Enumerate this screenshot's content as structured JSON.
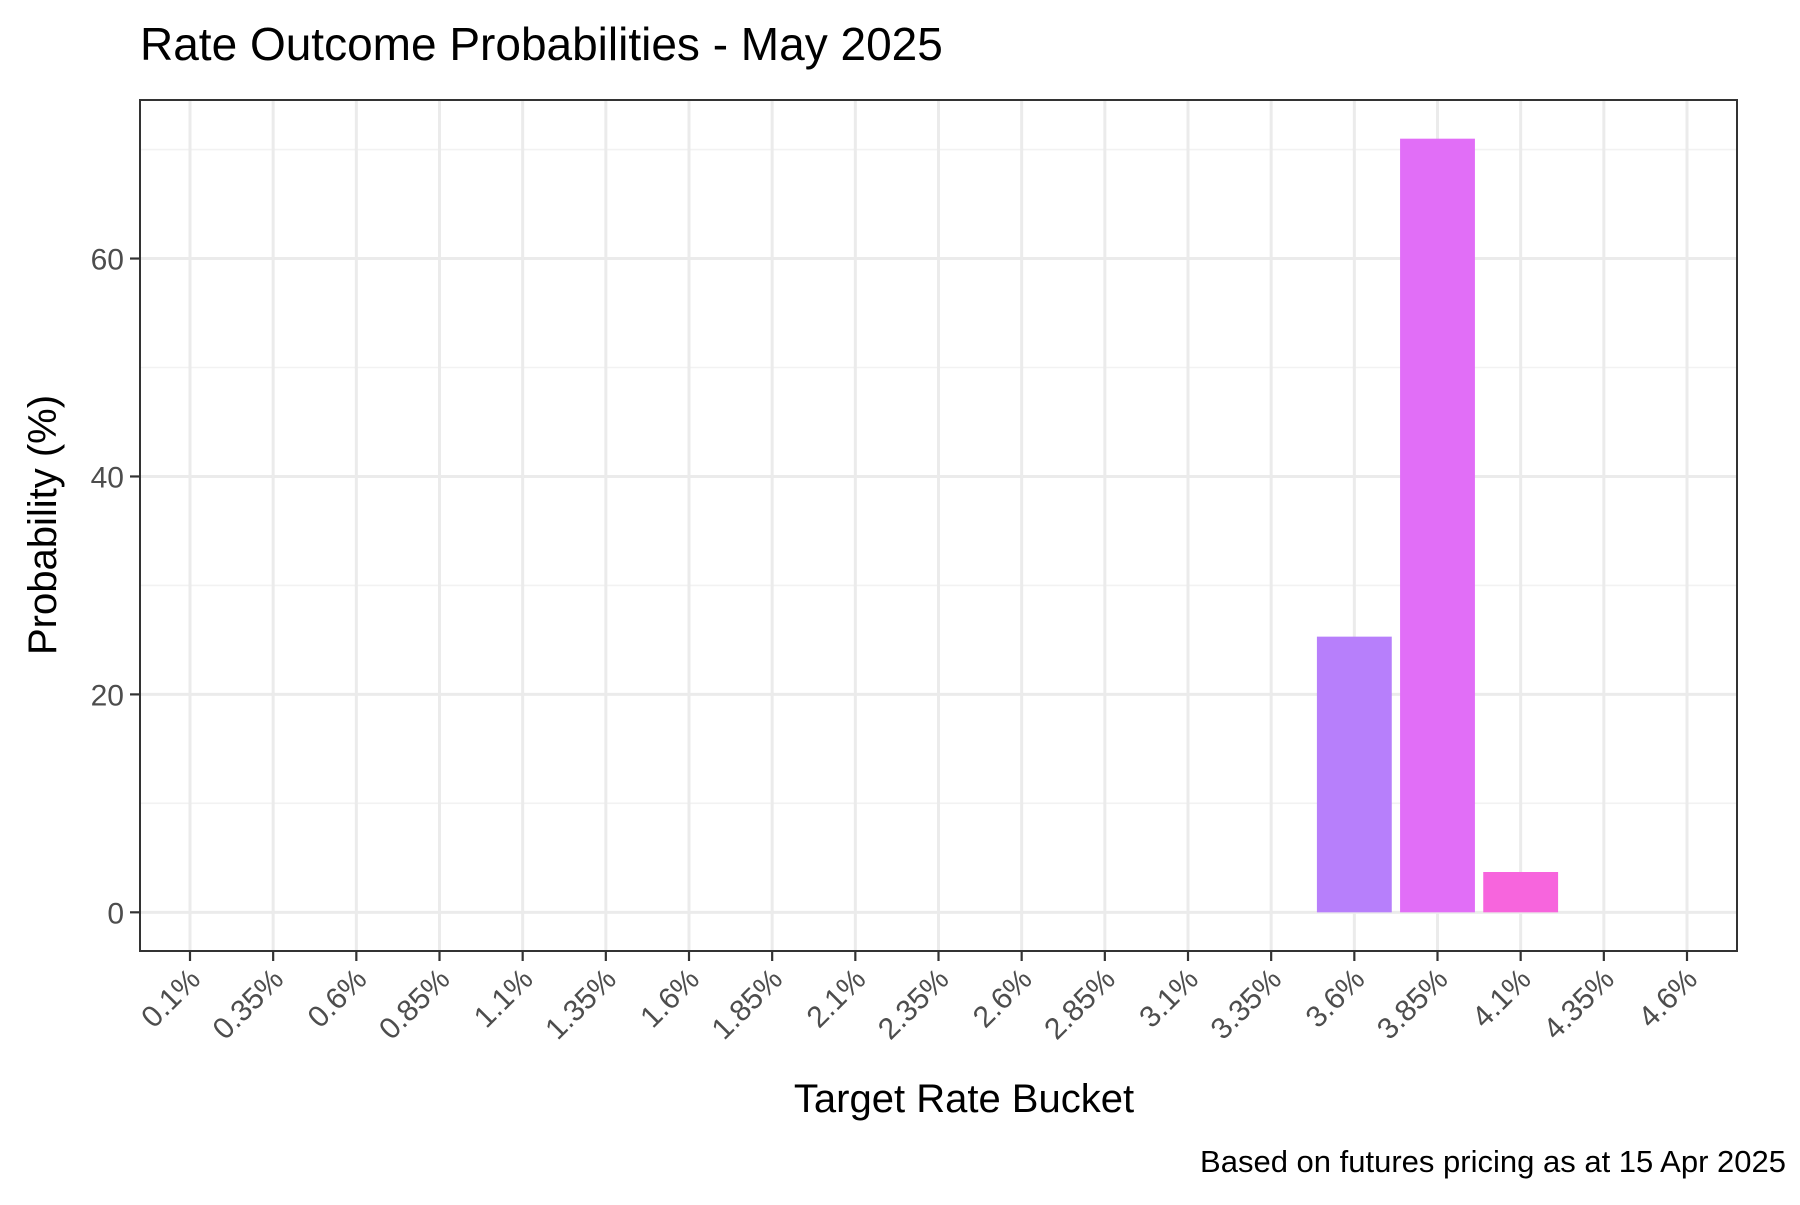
{
  "chart_data": {
    "type": "bar",
    "title": "Rate Outcome Probabilities - May 2025",
    "xlabel": "Target Rate Bucket",
    "ylabel": "Probability (%)",
    "caption": "Based on futures pricing as at 15 Apr 2025",
    "categories": [
      "0.1%",
      "0.35%",
      "0.6%",
      "0.85%",
      "1.1%",
      "1.35%",
      "1.6%",
      "1.85%",
      "2.1%",
      "2.35%",
      "2.6%",
      "2.85%",
      "3.1%",
      "3.35%",
      "3.6%",
      "3.85%",
      "4.1%",
      "4.35%",
      "4.6%"
    ],
    "values": [
      0,
      0,
      0,
      0,
      0,
      0,
      0,
      0,
      0,
      0,
      0,
      0,
      0,
      0,
      25.3,
      71.0,
      3.7,
      0,
      0
    ],
    "bar_colors": {
      "3.6%": "#b77ffb",
      "3.85%": "#e16ef7",
      "4.1%": "#f765dd"
    },
    "ylim": [
      -3.55,
      74.55
    ],
    "yticks": [
      0,
      20,
      40,
      60
    ],
    "grid": true,
    "legend": "none"
  }
}
